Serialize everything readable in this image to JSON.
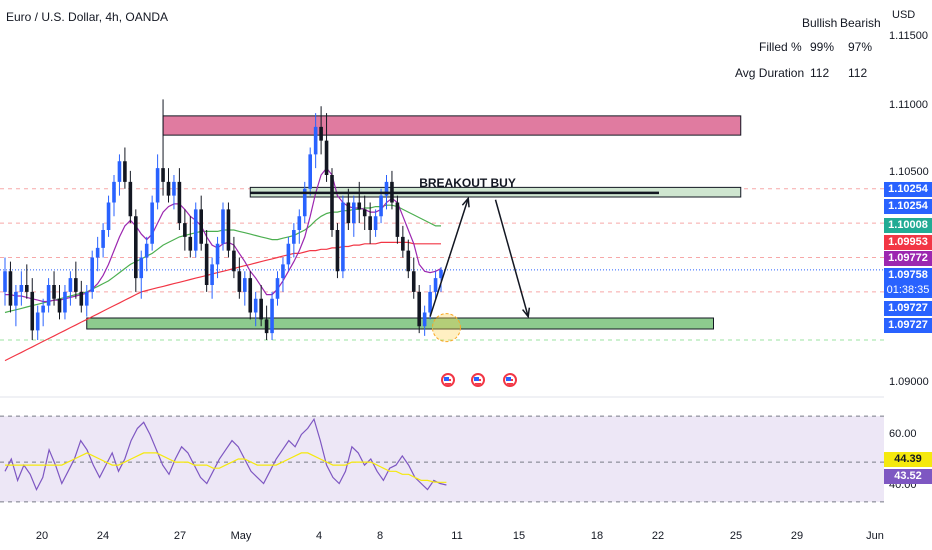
{
  "header": {
    "title": "Euro / U.S. Dollar, 4h, OANDA"
  },
  "stats": {
    "col_bullish": "Bullish",
    "col_bearish": "Bearish",
    "rows": [
      {
        "label": "Filled %",
        "bullish": "99%",
        "bearish": "97%"
      },
      {
        "label": "Avg Duration",
        "bullish": "112",
        "bearish": "112"
      }
    ]
  },
  "price_axis": {
    "currency": "USD",
    "ticks": [
      "1.11500",
      "1.11000",
      "1.10500",
      "1.09000"
    ],
    "badges": [
      {
        "text": "1.10254",
        "color": "#2962ff"
      },
      {
        "text": "1.10254",
        "color": "#2962ff"
      },
      {
        "text": "1.10008",
        "color": "#22ab94"
      },
      {
        "text": "1.09953",
        "color": "#f23645"
      },
      {
        "text": "1.09772",
        "color": "#9c27b0"
      },
      {
        "text": "1.09758",
        "color": "#2962ff"
      },
      {
        "text": "01:38:35",
        "color": "#2962ff"
      },
      {
        "text": "1.09727",
        "color": "#2962ff"
      },
      {
        "text": "1.09727",
        "color": "#2962ff"
      }
    ]
  },
  "annotation": {
    "breakout_label": "BREAKOUT BUY"
  },
  "rsi_axis": {
    "ticks": [
      "60.00",
      "40.00"
    ],
    "badges": [
      {
        "text": "44.39",
        "color": "#f5e90d",
        "text_color": "#131722"
      },
      {
        "text": "43.52",
        "color": "#7e57c2",
        "text_color": "#ffffff"
      }
    ]
  },
  "time_axis": {
    "ticks": [
      "20",
      "24",
      "27",
      "May",
      "4",
      "8",
      "11",
      "15",
      "18",
      "22",
      "25",
      "29",
      "Jun"
    ]
  },
  "chart_data": {
    "type": "candlestick",
    "symbol": "EUR/USD",
    "timeframe": "4h",
    "ylim": [
      1.0885,
      1.1165
    ],
    "candles": [
      [
        1.096,
        1.0985,
        1.095,
        1.0975
      ],
      [
        1.0975,
        1.0982,
        1.0945,
        1.095
      ],
      [
        1.095,
        1.0965,
        1.0935,
        1.096
      ],
      [
        1.096,
        1.0975,
        1.095,
        1.0965
      ],
      [
        1.0965,
        1.098,
        1.0955,
        1.096
      ],
      [
        1.096,
        1.097,
        1.0925,
        1.0932
      ],
      [
        1.0932,
        1.095,
        1.0925,
        1.0945
      ],
      [
        1.0945,
        1.0955,
        1.0935,
        1.095
      ],
      [
        1.095,
        1.097,
        1.0945,
        1.0965
      ],
      [
        1.0965,
        1.0975,
        1.095,
        1.0955
      ],
      [
        1.0955,
        1.0965,
        1.094,
        1.0945
      ],
      [
        1.0945,
        1.0965,
        1.094,
        1.096
      ],
      [
        1.096,
        1.0975,
        1.095,
        1.097
      ],
      [
        1.097,
        1.0982,
        1.0955,
        1.096
      ],
      [
        1.096,
        1.0968,
        1.0945,
        1.095
      ],
      [
        1.095,
        1.0965,
        1.0942,
        1.096
      ],
      [
        1.096,
        1.099,
        1.0955,
        1.0985
      ],
      [
        1.0985,
        1.1,
        1.0975,
        1.0992
      ],
      [
        1.0992,
        1.101,
        1.0985,
        1.1005
      ],
      [
        1.1005,
        1.103,
        1.1,
        1.1025
      ],
      [
        1.1025,
        1.1045,
        1.1015,
        1.104
      ],
      [
        1.104,
        1.106,
        1.103,
        1.1055
      ],
      [
        1.1055,
        1.1065,
        1.1035,
        1.104
      ],
      [
        1.104,
        1.1048,
        1.101,
        1.1015
      ],
      [
        1.1015,
        1.102,
        1.096,
        1.097
      ],
      [
        1.097,
        1.099,
        1.0955,
        1.0985
      ],
      [
        1.0985,
        1.1,
        1.0975,
        1.0995
      ],
      [
        1.0995,
        1.103,
        1.099,
        1.1025
      ],
      [
        1.1025,
        1.106,
        1.102,
        1.105
      ],
      [
        1.105,
        1.11,
        1.103,
        1.104
      ],
      [
        1.104,
        1.105,
        1.1025,
        1.103
      ],
      [
        1.103,
        1.1045,
        1.102,
        1.104
      ],
      [
        1.104,
        1.105,
        1.1005,
        1.101
      ],
      [
        1.101,
        1.102,
        1.099,
        1.1
      ],
      [
        1.1,
        1.1015,
        1.0985,
        1.099
      ],
      [
        1.099,
        1.1025,
        1.0985,
        1.102
      ],
      [
        1.102,
        1.103,
        1.099,
        1.0995
      ],
      [
        1.0995,
        1.1005,
        1.096,
        1.0965
      ],
      [
        1.0965,
        1.0985,
        1.0955,
        1.098
      ],
      [
        1.098,
        1.1,
        1.097,
        1.0995
      ],
      [
        1.0995,
        1.1025,
        1.099,
        1.102
      ],
      [
        1.102,
        1.1025,
        1.0985,
        1.099
      ],
      [
        1.099,
        1.1,
        1.097,
        1.0975
      ],
      [
        1.0975,
        1.0985,
        1.0955,
        1.096
      ],
      [
        1.096,
        1.0975,
        1.095,
        1.097
      ],
      [
        1.097,
        1.0975,
        1.094,
        1.0945
      ],
      [
        1.0945,
        1.096,
        1.0935,
        1.0955
      ],
      [
        1.0955,
        1.0965,
        1.0935,
        1.094
      ],
      [
        1.094,
        1.095,
        1.0925,
        1.093
      ],
      [
        1.093,
        1.096,
        1.0925,
        1.0955
      ],
      [
        1.0955,
        1.0975,
        1.095,
        1.097
      ],
      [
        1.097,
        1.0985,
        1.096,
        1.098
      ],
      [
        1.098,
        1.1,
        1.0975,
        1.0995
      ],
      [
        1.0995,
        1.101,
        1.0985,
        1.1005
      ],
      [
        1.1005,
        1.102,
        1.0995,
        1.1015
      ],
      [
        1.1015,
        1.104,
        1.101,
        1.1035
      ],
      [
        1.1035,
        1.1065,
        1.103,
        1.106
      ],
      [
        1.106,
        1.109,
        1.105,
        1.108
      ],
      [
        1.108,
        1.1095,
        1.106,
        1.107
      ],
      [
        1.107,
        1.109,
        1.104,
        1.1045
      ],
      [
        1.1045,
        1.105,
        1.1,
        1.1005
      ],
      [
        1.1005,
        1.101,
        1.097,
        1.0975
      ],
      [
        1.0975,
        1.103,
        1.097,
        1.1025
      ],
      [
        1.1025,
        1.1035,
        1.1005,
        1.101
      ],
      [
        1.101,
        1.103,
        1.1,
        1.1025
      ],
      [
        1.1025,
        1.104,
        1.101,
        1.102
      ],
      [
        1.102,
        1.103,
        1.1005,
        1.1015
      ],
      [
        1.1015,
        1.1025,
        1.0995,
        1.1005
      ],
      [
        1.1005,
        1.102,
        1.1,
        1.1015
      ],
      [
        1.1015,
        1.1035,
        1.101,
        1.103
      ],
      [
        1.103,
        1.1045,
        1.102,
        1.104
      ],
      [
        1.104,
        1.1048,
        1.102,
        1.1025
      ],
      [
        1.1025,
        1.103,
        1.0995,
        1.1
      ],
      [
        1.1,
        1.1008,
        1.0985,
        1.099
      ],
      [
        1.099,
        1.0998,
        1.097,
        1.0975
      ],
      [
        1.0975,
        1.0985,
        1.0955,
        1.096
      ],
      [
        1.096,
        1.0965,
        1.093,
        1.0935
      ],
      [
        1.0935,
        1.095,
        1.0928,
        1.0945
      ],
      [
        1.0945,
        1.0965,
        1.094,
        1.096
      ],
      [
        1.096,
        1.0975,
        1.0955,
        1.097
      ],
      [
        1.097,
        1.0978,
        1.096,
        1.0976
      ]
    ],
    "moving_averages": [
      {
        "color": "#f23645",
        "values": [
          1.091,
          1.0912,
          1.0914,
          1.0916,
          1.0918,
          1.092,
          1.0922,
          1.0924,
          1.0926,
          1.0928,
          1.093,
          1.0932,
          1.0934,
          1.0936,
          1.0938,
          1.094,
          1.0942,
          1.0944,
          1.0946,
          1.0948,
          1.095,
          1.0952,
          1.0954,
          1.0956,
          1.0958,
          1.096,
          1.0961,
          1.0962,
          1.0963,
          1.0964,
          1.0965,
          1.0966,
          1.0967,
          1.0968,
          1.0969,
          1.097,
          1.0971,
          1.0972,
          1.0973,
          1.0974,
          1.0975,
          1.0976,
          1.0977,
          1.0978,
          1.0979,
          1.098,
          1.0981,
          1.0982,
          1.0983,
          1.0984,
          1.0985,
          1.0986,
          1.0987,
          1.0988,
          1.0988,
          1.0989,
          1.099,
          1.099,
          1.0991,
          1.0991,
          1.0992,
          1.0992,
          1.0993,
          1.0993,
          1.0994,
          1.0994,
          1.0995,
          1.0995,
          1.0995,
          1.0996,
          1.0996,
          1.0996,
          1.0996,
          1.0996,
          1.0996,
          1.0995,
          1.0995,
          1.0995,
          1.0995,
          1.0995,
          1.0995
        ]
      },
      {
        "color": "#4caf50",
        "values": [
          1.0945,
          1.0946,
          1.0947,
          1.0948,
          1.0949,
          1.095,
          1.0951,
          1.0952,
          1.0953,
          1.0954,
          1.0955,
          1.0956,
          1.0957,
          1.0958,
          1.0959,
          1.096,
          1.0962,
          1.0964,
          1.0966,
          1.0968,
          1.0971,
          1.0974,
          1.0977,
          1.098,
          1.0982,
          1.0984,
          1.0986,
          1.0988,
          1.0991,
          1.0994,
          1.0996,
          1.0998,
          1.1,
          1.1001,
          1.1002,
          1.1003,
          1.1004,
          1.1004,
          1.1004,
          1.1004,
          1.1005,
          1.1005,
          1.1005,
          1.1004,
          1.1003,
          1.1002,
          1.1001,
          1.1,
          1.0999,
          1.0998,
          1.0998,
          1.0999,
          1.1,
          1.1001,
          1.1003,
          1.1005,
          1.1008,
          1.1012,
          1.1015,
          1.1017,
          1.1018,
          1.1018,
          1.1019,
          1.1019,
          1.102,
          1.102,
          1.1021,
          1.1021,
          1.1022,
          1.1022,
          1.1023,
          1.1023,
          1.1022,
          1.102,
          1.1018,
          1.1016,
          1.1014,
          1.1012,
          1.101,
          1.1008,
          1.1008
        ]
      },
      {
        "color": "#9c27b0",
        "values": [
          1.0958,
          1.0958,
          1.0957,
          1.0957,
          1.0956,
          1.0955,
          1.0954,
          1.0953,
          1.0953,
          1.0954,
          1.0954,
          1.0955,
          1.0956,
          1.0957,
          1.0958,
          1.0959,
          1.0962,
          1.0966,
          1.0972,
          1.098,
          1.099,
          1.1,
          1.1008,
          1.1012,
          1.1008,
          1.1002,
          1.0998,
          1.1002,
          1.101,
          1.1018,
          1.1022,
          1.1024,
          1.1024,
          1.102,
          1.1015,
          1.1012,
          1.1008,
          1.1,
          1.0994,
          1.0992,
          1.0995,
          1.0996,
          1.0994,
          1.0988,
          1.0982,
          1.0975,
          1.097,
          1.0964,
          1.0958,
          1.0958,
          1.0962,
          1.0968,
          1.0975,
          1.0982,
          1.099,
          1.1,
          1.1015,
          1.1032,
          1.1045,
          1.105,
          1.1045,
          1.103,
          1.1025,
          1.1022,
          1.1021,
          1.1021,
          1.102,
          1.1018,
          1.1018,
          1.102,
          1.1025,
          1.1028,
          1.1025,
          1.1015,
          1.1005,
          1.0995,
          1.098,
          1.0975,
          1.0974,
          1.0975,
          1.0977
        ]
      }
    ],
    "zones": [
      {
        "from_bar": 29,
        "to_bar": 135,
        "top": 1.1088,
        "bottom": 1.1074,
        "color": "#e07ba0"
      },
      {
        "from_bar": 45,
        "to_bar": 135,
        "top": 1.1036,
        "bottom": 1.1029,
        "color": "#cfe6d0"
      },
      {
        "from_bar": 15,
        "to_bar": 130,
        "top": 1.0941,
        "bottom": 1.0933,
        "color": "#8dcb8e"
      }
    ],
    "trend_line": {
      "from_bar": 45,
      "to_bar": 120,
      "y": 1.1032
    },
    "arrows": [
      {
        "x1": 78,
        "y1": 1.0942,
        "x2": 85,
        "y2": 1.1028
      },
      {
        "x1": 90,
        "y1": 1.1027,
        "x2": 96,
        "y2": 1.0942
      }
    ],
    "rsi": {
      "ylim": [
        36,
        68
      ],
      "values": [
        48,
        52,
        45,
        50,
        47,
        42,
        46,
        55,
        50,
        44,
        48,
        52,
        58,
        55,
        50,
        46,
        50,
        54,
        48,
        52,
        58,
        62,
        64,
        60,
        55,
        50,
        47,
        52,
        56,
        54,
        50,
        46,
        44,
        48,
        52,
        55,
        58,
        56,
        52,
        48,
        46,
        44,
        48,
        52,
        55,
        58,
        56,
        60,
        62,
        65,
        58,
        50,
        46,
        44,
        48,
        56,
        54,
        50,
        52,
        48,
        45,
        49,
        50,
        53,
        50,
        46,
        44,
        42,
        45,
        44,
        43.5
      ],
      "ma_values": [
        50,
        50,
        50,
        50,
        50,
        50,
        50,
        50,
        50,
        50,
        51,
        52,
        53,
        54,
        53,
        52,
        51,
        50,
        50,
        51,
        52,
        53,
        54,
        54,
        54,
        53,
        52,
        51,
        51,
        51,
        50,
        50,
        50,
        49,
        49,
        50,
        51,
        52,
        52,
        51,
        50,
        50,
        50,
        50,
        51,
        52,
        53,
        54,
        54,
        53,
        52,
        51,
        50,
        50,
        50,
        51,
        51,
        51,
        51,
        50,
        49,
        48,
        48,
        47,
        47,
        46,
        45,
        45,
        44.5,
        44.4,
        44.4
      ],
      "levels": [
        70,
        50,
        30
      ]
    }
  }
}
